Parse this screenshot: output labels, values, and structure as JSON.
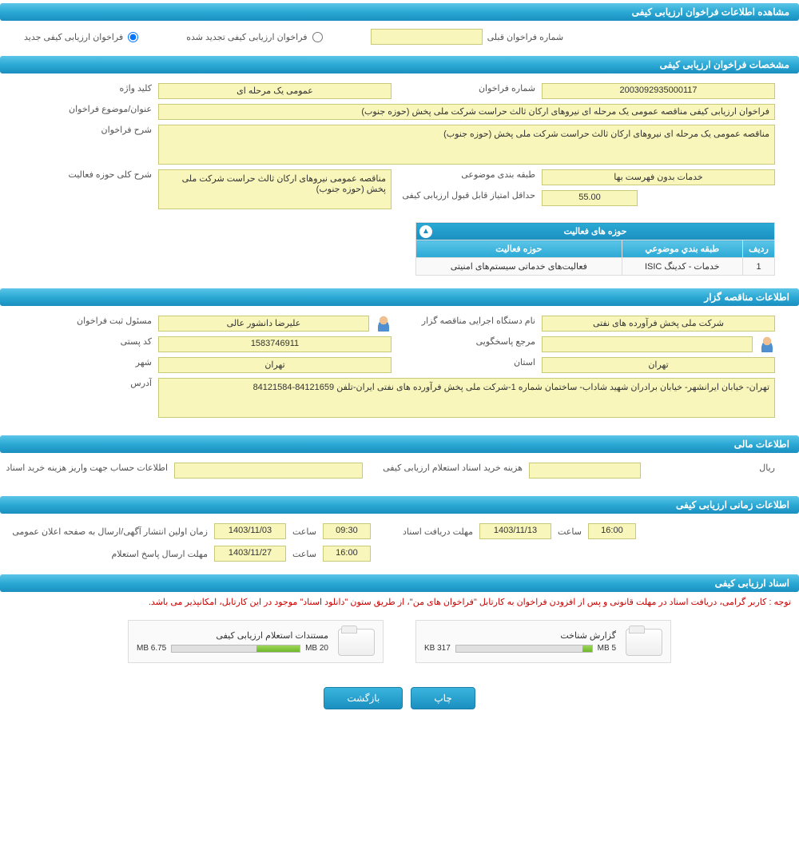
{
  "colors": {
    "header_gradient_top": "#5bc5e8",
    "header_gradient_bottom": "#1a8fc0",
    "field_bg": "#f8f6bb",
    "field_border": "#c9c97a",
    "notice": "#cc0000",
    "meter_fill": "#6eb82a"
  },
  "hdr": {
    "main": "مشاهده اطلاعات فراخوان ارزیابی کیفی",
    "specs": "مشخصات فراخوان ارزیابی کیفی",
    "tenderer": "اطلاعات مناقصه گزار",
    "financial": "اطلاعات مالی",
    "timing": "اطلاعات زمانی ارزیابی کیفی",
    "docs": "اسناد ارزیابی کیفی"
  },
  "radio": {
    "new": "فراخوان ارزیابی کیفی جدید",
    "renewed": "فراخوان ارزیابی کیفی تجدید شده",
    "prev_label": "شماره فراخوان قبلی",
    "prev_value": ""
  },
  "specs": {
    "call_no_label": "شماره فراخوان",
    "call_no": "2003092935000117",
    "keyword_label": "کلید واژه",
    "keyword": "عمومی یک مرحله ای",
    "subject_label": "عنوان/موضوع فراخوان",
    "subject": "فراخوان ارزیابی کیفی مناقصه عمومی یک مرحله ای نیروهای ارکان ثالث حراست شرکت ملی پخش (حوزه جنوب)",
    "desc_label": "شرح فراخوان",
    "desc": "مناقصه عمومی یک مرحله ای نیروهای ارکان ثالث حراست شرکت ملی پخش (حوزه جنوب)",
    "class_label": "طبقه بندی موضوعی",
    "class": "خدمات بدون فهرست بها",
    "scope_label": "شرح کلی حوزه فعالیت",
    "scope": "مناقصه عمومی نیروهای ارکان ثالث حراست شرکت ملی پخش (حوزه جنوب)",
    "min_score_label": "حداقل امتیاز قابل قبول ارزیابی کیفی",
    "min_score": "55.00"
  },
  "activity": {
    "title": "حوزه های فعالیت",
    "col_row": "ردیف",
    "col_class": "طبقه بندي موضوعي",
    "col_scope": "حوزه فعالیت",
    "rows": [
      {
        "n": "1",
        "class": "خدمات - کدینگ ISIC",
        "scope": "فعالیت‌های خدماتی سیستم‌های امنیتی"
      }
    ]
  },
  "tenderer": {
    "org_label": "نام دستگاه اجرایی مناقصه گزار",
    "org": "شرکت ملی پخش فرآورده های نفتی",
    "reg_person_label": "مسئول ثبت فراخوان",
    "reg_person": "علیرضا دانشور عالی",
    "contact_label": "مرجع پاسخگویی",
    "contact": "",
    "postal_label": "کد پستی",
    "postal": "1583746911",
    "province_label": "استان",
    "province": "تهران",
    "city_label": "شهر",
    "city": "تهران",
    "address_label": "آدرس",
    "address": "تهران- خیابان ایرانشهر- خیابان برادران شهید شاداب- ساختمان شماره 1-شرکت ملی پخش فرآورده های نفتی ایران-تلفن 84121659-84121584"
  },
  "fin": {
    "cost_label": "هزینه خرید اسناد استعلام ارزیابی کیفی",
    "cost": "",
    "unit": "ریال",
    "account_label": "اطلاعات حساب جهت واریز هزینه خرید اسناد",
    "account": ""
  },
  "timing": {
    "pub_label": "زمان اولین انتشار آگهی/ارسال به صفحه اعلان عمومی",
    "pub_date": "1403/11/03",
    "pub_time_label": "ساعت",
    "pub_time": "09:30",
    "deadline_label": "مهلت دریافت اسناد",
    "deadline_date": "1403/11/13",
    "deadline_time_label": "ساعت",
    "deadline_time": "16:00",
    "reply_label": "مهلت ارسال پاسخ استعلام",
    "reply_date": "1403/11/27",
    "reply_time_label": "ساعت",
    "reply_time": "16:00"
  },
  "docs": {
    "notice": "توجه : کاربر گرامی، دریافت اسناد در مهلت قانونی و پس از افزودن فراخوان به کارتابل \"فراخوان های من\"، از طریق ستون \"دانلود اسناد\" موجود در این کارتابل، امکانپذیر می باشد.",
    "a1_title": "گزارش شناخت",
    "a1_used": "317 KB",
    "a1_total": "5 MB",
    "a1_pct": 7,
    "a2_title": "مستندات استعلام ارزیابی کیفی",
    "a2_used": "6.75 MB",
    "a2_total": "20 MB",
    "a2_pct": 34
  },
  "btn": {
    "print": "چاپ",
    "back": "بازگشت"
  }
}
